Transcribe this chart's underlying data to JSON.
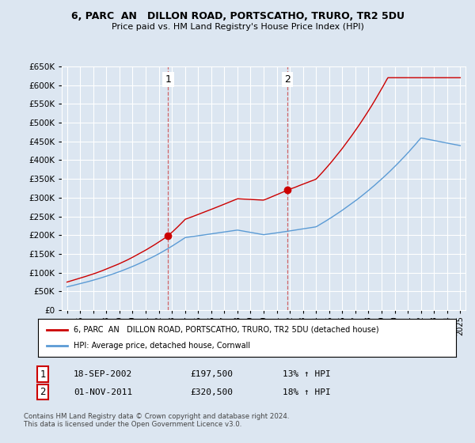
{
  "title": "6, PARC  AN   DILLON ROAD, PORTSCATHO, TRURO, TR2 5DU",
  "subtitle": "Price paid vs. HM Land Registry's House Price Index (HPI)",
  "legend_label_red": "6, PARC  AN   DILLON ROAD, PORTSCATHO, TRURO, TR2 5DU (detached house)",
  "legend_label_blue": "HPI: Average price, detached house, Cornwall",
  "footnote": "Contains HM Land Registry data © Crown copyright and database right 2024.\nThis data is licensed under the Open Government Licence v3.0.",
  "sale1_date": "18-SEP-2002",
  "sale1_price": "£197,500",
  "sale1_hpi": "13% ↑ HPI",
  "sale2_date": "01-NOV-2011",
  "sale2_price": "£320,500",
  "sale2_hpi": "18% ↑ HPI",
  "ylim": [
    0,
    650000
  ],
  "yticks": [
    0,
    50000,
    100000,
    150000,
    200000,
    250000,
    300000,
    350000,
    400000,
    450000,
    500000,
    550000,
    600000,
    650000
  ],
  "background_color": "#dce6f1",
  "red_color": "#cc0000",
  "blue_color": "#5b9bd5",
  "marker1_x": 2002.72,
  "marker1_y": 197500,
  "marker2_x": 2011.83,
  "marker2_y": 320500,
  "vline1_x": 2002.72,
  "vline2_x": 2011.83,
  "xlim_start": 1994.6,
  "xlim_end": 2025.4
}
